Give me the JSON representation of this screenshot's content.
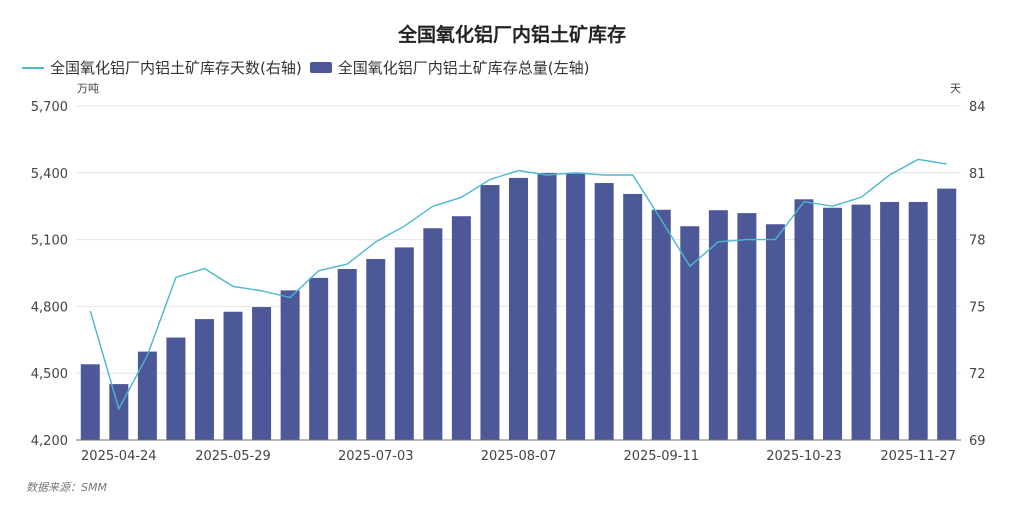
{
  "chart_data": {
    "type": "bar+line",
    "title": "全国氧化铝厂内铝土矿库存",
    "legend": [
      "全国氧化铝厂内铝土矿库存天数(右轴)",
      "全国氧化铝厂内铝土矿库存总量(左轴)"
    ],
    "legend_position": "top-left",
    "left_axis": {
      "unit": "万吨",
      "ylim": [
        4200,
        5700
      ],
      "ticks": [
        "4,200",
        "4,500",
        "4,800",
        "5,100",
        "5,400",
        "5,700"
      ]
    },
    "right_axis": {
      "unit": "天",
      "ylim": [
        69,
        84
      ],
      "ticks": [
        "69",
        "72",
        "75",
        "78",
        "81",
        "84"
      ]
    },
    "x_labels": [
      {
        "index": 1,
        "label": "2025-04-24"
      },
      {
        "index": 5,
        "label": "2025-05-29"
      },
      {
        "index": 10,
        "label": "2025-07-03"
      },
      {
        "index": 15,
        "label": "2025-08-07"
      },
      {
        "index": 20,
        "label": "2025-09-11"
      },
      {
        "index": 25,
        "label": "2025-10-23"
      },
      {
        "index": 29,
        "label": "2025-11-27"
      }
    ],
    "series": [
      {
        "name": "全国氧化铝厂内铝土矿库存总量(左轴)",
        "type": "bar",
        "axis": "left",
        "values": [
          4540,
          4451,
          4597,
          4660,
          4743,
          4776,
          4797,
          4872,
          4928,
          4968,
          5013,
          5065,
          5151,
          5205,
          5345,
          5377,
          5399,
          5396,
          5354,
          5305,
          5234,
          5160,
          5232,
          5219,
          5169,
          5281,
          5243,
          5257,
          5269,
          5269,
          5329
        ]
      },
      {
        "name": "全国氧化铝厂内铝土矿库存天数(右轴)",
        "type": "line",
        "axis": "right",
        "values": [
          74.8,
          70.4,
          72.8,
          76.3,
          76.7,
          75.9,
          75.7,
          75.4,
          76.6,
          76.9,
          77.9,
          78.6,
          79.5,
          79.9,
          80.7,
          81.1,
          80.9,
          81.0,
          80.9,
          80.9,
          78.9,
          76.8,
          77.9,
          78.0,
          78.0,
          79.7,
          79.5,
          79.9,
          80.9,
          81.6,
          81.4
        ]
      }
    ],
    "grid": true
  },
  "colors": {
    "bar": "#4d5898",
    "line": "#4bb8d0",
    "grid": "#e6e6e6"
  },
  "footer": "数据来源：SMM"
}
